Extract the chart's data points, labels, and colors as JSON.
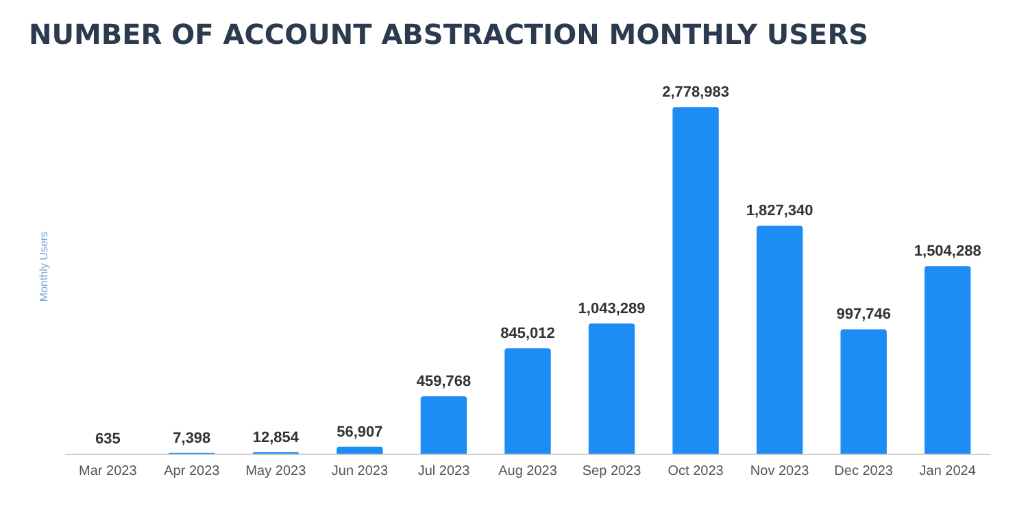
{
  "chart_data": {
    "type": "bar",
    "title": "NUMBER OF ACCOUNT ABSTRACTION MONTHLY USERS",
    "ylabel": "Monthly Users",
    "categories": [
      "Mar 2023",
      "Apr 2023",
      "May 2023",
      "Jun 2023",
      "Jul 2023",
      "Aug 2023",
      "Sep 2023",
      "Oct 2023",
      "Nov 2023",
      "Dec 2023",
      "Jan 2024"
    ],
    "values": [
      635,
      7398,
      12854,
      56907,
      459768,
      845012,
      1043289,
      2778983,
      1827340,
      997746,
      1504288
    ],
    "value_labels": [
      "635",
      "7,398",
      "12,854",
      "56,907",
      "459,768",
      "845,012",
      "1,043,289",
      "2,778,983",
      "1,827,340",
      "997,746",
      "1,504,288"
    ],
    "color": "#1e8cf5",
    "tick_labels": "x",
    "grid": false
  }
}
